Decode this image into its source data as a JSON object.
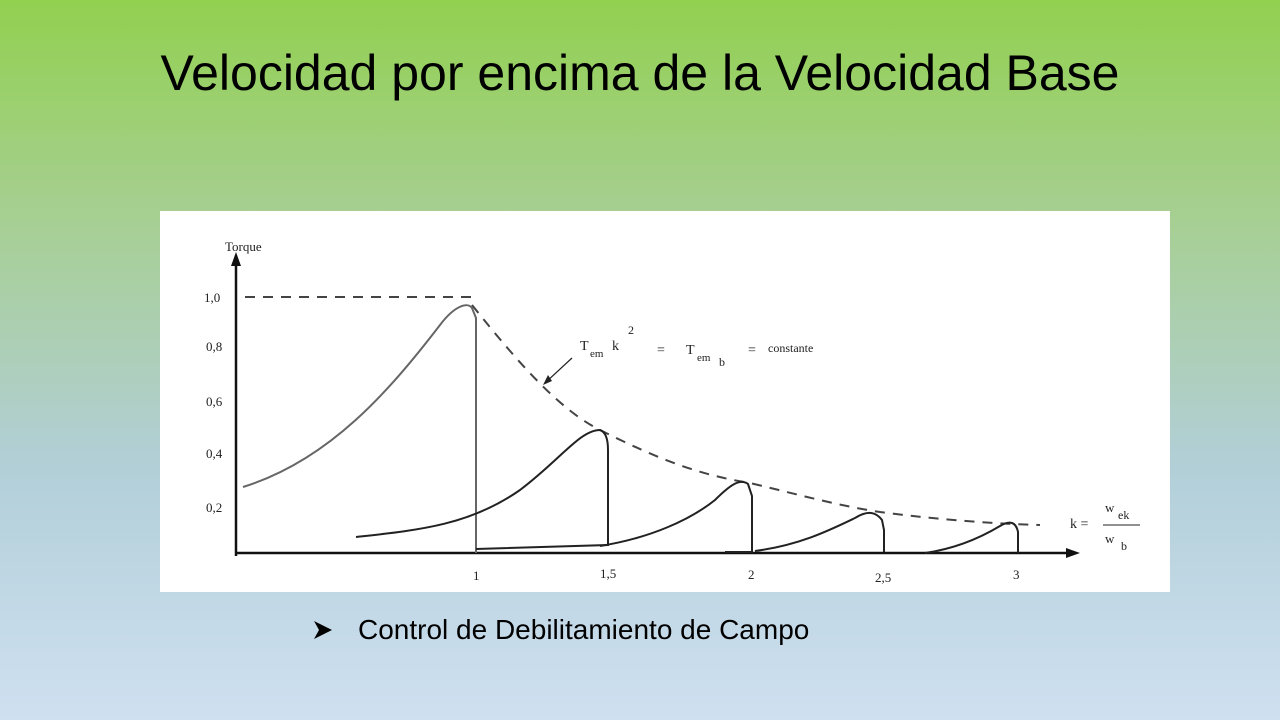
{
  "title": "Velocidad por encima de la Velocidad Base",
  "figure": {
    "y_axis_label": "Torque",
    "y_tick_labels": [
      "1,0",
      "0,8",
      "0,6",
      "0,4",
      "0,2"
    ],
    "x_tick_labels": [
      "1",
      "1,5",
      "2",
      "2,5",
      "3"
    ],
    "annotation": [
      "T",
      "em",
      "k",
      "2",
      "=",
      "T",
      "em",
      "b",
      "=",
      "constante"
    ],
    "x_axis_label": [
      "k =",
      "w",
      "ek",
      "w",
      "b"
    ]
  },
  "bullet": "Control de Debilitamiento de  Campo"
}
